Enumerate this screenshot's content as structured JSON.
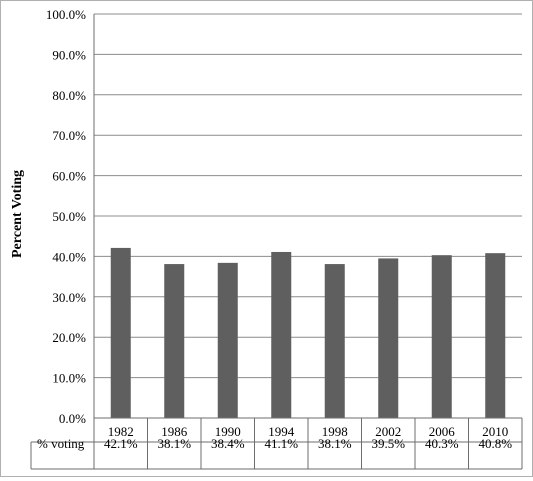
{
  "chart_data": {
    "type": "bar",
    "title": "",
    "xlabel": "",
    "ylabel": "Percent Voting",
    "ylim": [
      0,
      100
    ],
    "yticks": [
      "0.0%",
      "10.0%",
      "20.0%",
      "30.0%",
      "40.0%",
      "50.0%",
      "60.0%",
      "70.0%",
      "80.0%",
      "90.0%",
      "100.0%"
    ],
    "grid": true,
    "categories": [
      "1982",
      "1986",
      "1990",
      "1994",
      "1998",
      "2002",
      "2006",
      "2010"
    ],
    "series": [
      {
        "name": "% voting",
        "values": [
          42.1,
          38.1,
          38.4,
          41.1,
          38.1,
          39.5,
          40.3,
          40.8
        ],
        "labels": [
          "42.1%",
          "38.1%",
          "38.4%",
          "41.1%",
          "38.1%",
          "39.5%",
          "40.3%",
          "40.8%"
        ]
      }
    ],
    "colors": {
      "bar": "#5f5f5f",
      "grid": "#8c8c8c",
      "axis": "#6e6e6e"
    }
  }
}
